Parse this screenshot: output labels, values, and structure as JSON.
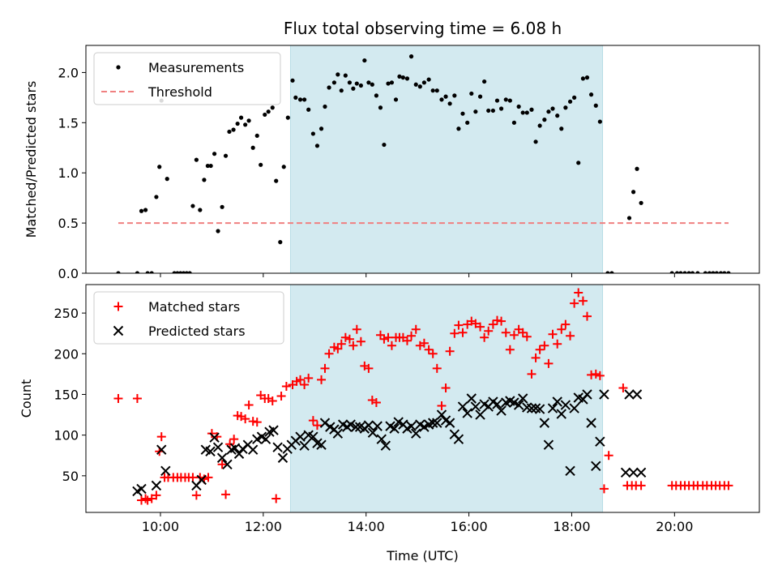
{
  "chart_data": [
    {
      "type": "scatter",
      "title": "Flux total observing time = 6.08 h",
      "xlabel": "",
      "ylabel": "Matched/Predicted stars",
      "xlim": [
        8.55,
        21.65
      ],
      "ylim": [
        0,
        2.27
      ],
      "x_ticks": [
        10,
        12,
        14,
        16,
        18,
        20
      ],
      "x_tick_labels_shown": false,
      "y_ticks": [
        0.0,
        0.5,
        1.0,
        1.5,
        2.0
      ],
      "y_tick_labels": [
        "0.0",
        "0.5",
        "1.0",
        "1.5",
        "2.0"
      ],
      "shaded_region": {
        "x_start": 12.53,
        "x_end": 18.6,
        "color": "#d3eaf0"
      },
      "legend": {
        "placement": "top-left",
        "entries": [
          "Measurements",
          "Threshold"
        ]
      },
      "series": [
        {
          "name": "Measurements",
          "marker": "dot",
          "color": "#000000",
          "x": [
            9.18,
            9.55,
            9.63,
            9.71,
            9.75,
            9.83,
            9.92,
            9.98,
            10.02,
            10.13,
            10.27,
            10.33,
            10.39,
            10.45,
            10.51,
            10.57,
            10.63,
            10.7,
            10.77,
            10.85,
            10.92,
            10.98,
            11.05,
            11.12,
            11.2,
            11.27,
            11.34,
            11.42,
            11.5,
            11.57,
            11.65,
            11.72,
            11.8,
            11.88,
            11.95,
            12.03,
            12.1,
            12.18,
            12.25,
            12.33,
            12.4,
            12.48,
            12.57,
            12.63,
            12.72,
            12.8,
            12.88,
            12.97,
            13.05,
            13.13,
            13.2,
            13.28,
            13.38,
            13.45,
            13.52,
            13.6,
            13.68,
            13.75,
            13.82,
            13.9,
            13.97,
            14.05,
            14.12,
            14.2,
            14.28,
            14.35,
            14.43,
            14.5,
            14.58,
            14.65,
            14.72,
            14.8,
            14.88,
            14.97,
            15.05,
            15.13,
            15.22,
            15.3,
            15.38,
            15.47,
            15.55,
            15.63,
            15.72,
            15.8,
            15.88,
            15.97,
            16.05,
            16.13,
            16.22,
            16.3,
            16.38,
            16.47,
            16.55,
            16.63,
            16.72,
            16.8,
            16.88,
            16.97,
            17.05,
            17.13,
            17.22,
            17.3,
            17.38,
            17.47,
            17.55,
            17.63,
            17.72,
            17.8,
            17.88,
            17.97,
            18.05,
            18.13,
            18.22,
            18.3,
            18.38,
            18.47,
            18.55,
            18.7,
            18.78,
            19.12,
            19.2,
            19.27,
            19.35,
            19.95,
            20.05,
            20.12,
            20.2,
            20.28,
            20.35,
            20.45,
            20.6,
            20.68,
            20.75,
            20.82,
            20.9,
            20.97,
            21.05
          ],
          "y": [
            0,
            0,
            0.62,
            0.63,
            0,
            0,
            0.76,
            1.06,
            1.72,
            0.94,
            0,
            0,
            0,
            0,
            0,
            0,
            0.67,
            1.13,
            0.63,
            0.93,
            1.07,
            1.07,
            1.19,
            0.42,
            0.66,
            1.17,
            1.41,
            1.43,
            1.49,
            1.55,
            1.48,
            1.52,
            1.25,
            1.37,
            1.08,
            1.58,
            1.61,
            1.65,
            0.92,
            0.31,
            1.06,
            1.55,
            1.92,
            1.75,
            1.73,
            1.73,
            1.63,
            1.39,
            1.27,
            1.44,
            1.66,
            1.85,
            1.9,
            1.98,
            1.82,
            1.97,
            1.9,
            1.84,
            1.89,
            1.87,
            2.12,
            1.9,
            1.88,
            1.77,
            1.65,
            1.28,
            1.89,
            1.9,
            1.73,
            1.96,
            1.95,
            1.94,
            2.16,
            1.88,
            1.86,
            1.9,
            1.93,
            1.82,
            1.82,
            1.73,
            1.76,
            1.69,
            1.77,
            1.44,
            1.59,
            1.5,
            1.79,
            1.61,
            1.76,
            1.91,
            1.62,
            1.62,
            1.72,
            1.64,
            1.73,
            1.72,
            1.5,
            1.66,
            1.6,
            1.6,
            1.63,
            1.31,
            1.47,
            1.53,
            1.61,
            1.64,
            1.57,
            1.44,
            1.65,
            1.71,
            1.75,
            1.1,
            1.94,
            1.95,
            1.78,
            1.67,
            1.51,
            0,
            0,
            0.55,
            0.81,
            1.04,
            0.7,
            0,
            0,
            0,
            0,
            0,
            0,
            0,
            0,
            0,
            0,
            0,
            0,
            0,
            0
          ]
        },
        {
          "name": "Threshold",
          "style": "dashed",
          "color": "#f08080",
          "x": [
            9.18,
            21.05
          ],
          "y": [
            0.5,
            0.5
          ]
        }
      ]
    },
    {
      "type": "scatter",
      "title": "",
      "xlabel": "Time (UTC)",
      "ylabel": "Count",
      "xlim": [
        8.55,
        21.65
      ],
      "ylim": [
        5,
        285
      ],
      "x_ticks": [
        10,
        12,
        14,
        16,
        18,
        20
      ],
      "x_tick_labels": [
        "10:00",
        "12:00",
        "14:00",
        "16:00",
        "18:00",
        "20:00"
      ],
      "y_ticks": [
        50,
        100,
        150,
        200,
        250
      ],
      "y_tick_labels": [
        "50",
        "100",
        "150",
        "200",
        "250"
      ],
      "shaded_region": {
        "x_start": 12.53,
        "x_end": 18.6,
        "color": "#d3eaf0"
      },
      "legend": {
        "placement": "top-left",
        "entries": [
          "Matched stars",
          "Predicted stars"
        ]
      },
      "series": [
        {
          "name": "Matched stars",
          "marker": "plus",
          "color": "#ff0000",
          "x": [
            9.18,
            9.55,
            9.63,
            9.71,
            9.75,
            9.83,
            9.92,
            9.98,
            10.02,
            10.08,
            10.15,
            10.25,
            10.33,
            10.4,
            10.48,
            10.55,
            10.63,
            10.7,
            10.77,
            10.85,
            10.93,
            11.0,
            11.1,
            11.2,
            11.27,
            11.35,
            11.43,
            11.5,
            11.57,
            11.65,
            11.72,
            11.8,
            11.88,
            11.95,
            12.03,
            12.1,
            12.18,
            12.25,
            12.35,
            12.45,
            12.57,
            12.65,
            12.72,
            12.8,
            12.88,
            12.97,
            13.05,
            13.13,
            13.2,
            13.28,
            13.38,
            13.45,
            13.52,
            13.6,
            13.68,
            13.75,
            13.82,
            13.9,
            13.97,
            14.05,
            14.12,
            14.2,
            14.28,
            14.35,
            14.43,
            14.5,
            14.58,
            14.65,
            14.72,
            14.8,
            14.88,
            14.97,
            15.05,
            15.13,
            15.22,
            15.3,
            15.38,
            15.47,
            15.55,
            15.63,
            15.72,
            15.8,
            15.88,
            15.97,
            16.05,
            16.13,
            16.22,
            16.3,
            16.38,
            16.47,
            16.55,
            16.63,
            16.72,
            16.8,
            16.88,
            16.97,
            17.05,
            17.13,
            17.22,
            17.3,
            17.38,
            17.47,
            17.55,
            17.63,
            17.72,
            17.8,
            17.88,
            17.97,
            18.05,
            18.13,
            18.22,
            18.3,
            18.38,
            18.47,
            18.55,
            18.63,
            18.72,
            19.0,
            19.08,
            19.17,
            19.25,
            19.35,
            19.95,
            20.03,
            20.12,
            20.2,
            20.28,
            20.37,
            20.45,
            20.55,
            20.63,
            20.72,
            20.8,
            20.88,
            20.97,
            21.05
          ],
          "y": [
            145,
            145,
            20,
            22,
            20,
            22,
            26,
            80,
            98,
            48,
            48,
            48,
            48,
            48,
            48,
            48,
            48,
            26,
            48,
            46,
            48,
            102,
            98,
            64,
            27,
            89,
            95,
            124,
            123,
            120,
            137,
            117,
            116,
            149,
            145,
            145,
            142,
            22,
            148,
            160,
            162,
            166,
            168,
            162,
            170,
            118,
            112,
            168,
            182,
            200,
            208,
            206,
            212,
            220,
            218,
            210,
            230,
            215,
            185,
            182,
            143,
            140,
            223,
            218,
            220,
            210,
            220,
            220,
            220,
            216,
            222,
            230,
            210,
            213,
            205,
            200,
            182,
            136,
            158,
            203,
            225,
            235,
            226,
            236,
            240,
            237,
            233,
            220,
            228,
            236,
            241,
            240,
            226,
            205,
            223,
            230,
            226,
            221,
            175,
            195,
            205,
            210,
            188,
            224,
            212,
            230,
            236,
            222,
            262,
            275,
            265,
            246,
            174,
            175,
            173,
            34,
            75,
            158,
            38,
            38,
            38,
            38,
            38,
            38,
            38,
            38,
            38,
            38,
            38,
            38,
            38,
            38,
            38,
            38,
            38,
            38
          ],
          "_note": ""
        },
        {
          "name": "Predicted stars",
          "marker": "x",
          "color": "#000000",
          "x": [
            9.55,
            9.63,
            9.92,
            10.02,
            10.1,
            10.7,
            10.8,
            10.88,
            10.97,
            11.05,
            11.12,
            11.2,
            11.3,
            11.38,
            11.45,
            11.53,
            11.6,
            11.7,
            11.8,
            11.88,
            11.97,
            12.05,
            12.12,
            12.2,
            12.28,
            12.38,
            12.47,
            12.55,
            12.63,
            12.72,
            12.8,
            12.88,
            12.97,
            13.05,
            13.13,
            13.2,
            13.3,
            13.38,
            13.45,
            13.55,
            13.63,
            13.7,
            13.8,
            13.88,
            13.97,
            14.05,
            14.13,
            14.22,
            14.3,
            14.38,
            14.47,
            14.55,
            14.63,
            14.72,
            14.8,
            14.88,
            14.97,
            15.05,
            15.13,
            15.22,
            15.3,
            15.38,
            15.47,
            15.55,
            15.63,
            15.72,
            15.8,
            15.88,
            15.97,
            16.05,
            16.13,
            16.22,
            16.3,
            16.38,
            16.47,
            16.55,
            16.63,
            16.72,
            16.8,
            16.88,
            16.97,
            17.05,
            17.13,
            17.22,
            17.3,
            17.38,
            17.47,
            17.55,
            17.63,
            17.72,
            17.8,
            17.88,
            17.97,
            18.05,
            18.13,
            18.22,
            18.3,
            18.38,
            18.47,
            18.55,
            18.63,
            19.05,
            19.12,
            19.2,
            19.27,
            19.35
          ],
          "y": [
            31,
            34,
            38,
            82,
            56,
            38,
            45,
            82,
            80,
            97,
            85,
            72,
            64,
            82,
            84,
            77,
            83,
            88,
            82,
            95,
            98,
            95,
            104,
            106,
            85,
            72,
            83,
            88,
            93,
            98,
            87,
            100,
            98,
            90,
            88,
            115,
            110,
            107,
            102,
            113,
            110,
            113,
            110,
            110,
            108,
            112,
            103,
            111,
            95,
            87,
            111,
            108,
            116,
            113,
            108,
            111,
            102,
            113,
            110,
            113,
            115,
            115,
            125,
            118,
            115,
            101,
            95,
            135,
            127,
            145,
            135,
            125,
            138,
            135,
            141,
            138,
            130,
            140,
            142,
            140,
            137,
            145,
            134,
            133,
            133,
            132,
            115,
            88,
            133,
            141,
            126,
            137,
            56,
            133,
            146,
            144,
            150,
            115,
            62,
            92,
            150,
            54,
            150,
            54,
            150,
            54
          ],
          "_note": ""
        }
      ]
    }
  ]
}
